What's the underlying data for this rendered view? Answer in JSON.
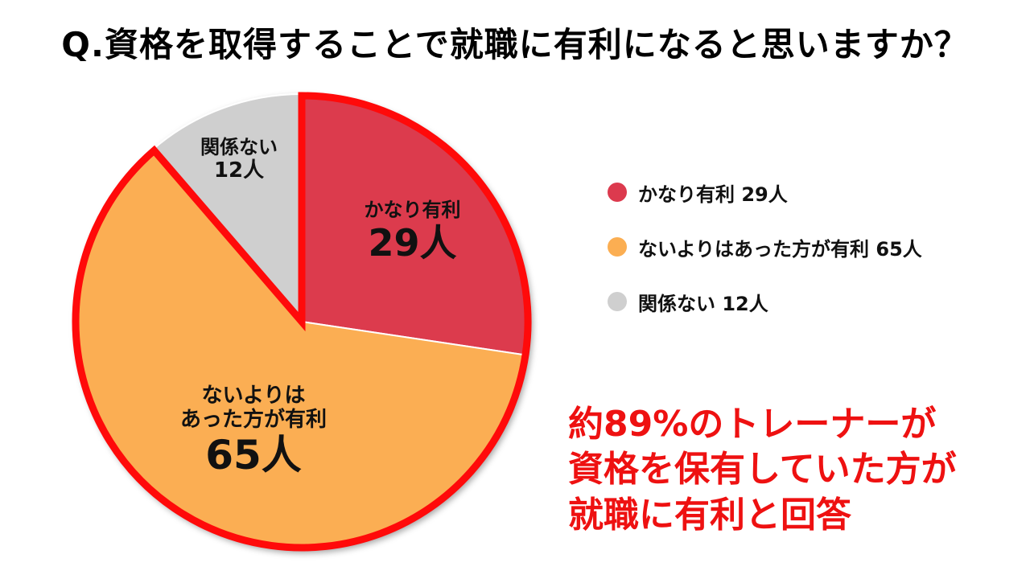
{
  "title": "Q.資格を取得することで就職に有利になると思いますか？",
  "chart_data": {
    "type": "pie",
    "title": "Q.資格を取得することで就職に有利になると思いますか？",
    "unit": "人",
    "slices": [
      {
        "label": "かなり有利",
        "value": 29,
        "value_text": "29人",
        "color": "#dc3a4e"
      },
      {
        "label": "ないよりはあった方が有利",
        "label_lines": [
          "ないよりは",
          "あった方が有利"
        ],
        "value": 65,
        "value_text": "65人",
        "color": "#fbae52"
      },
      {
        "label": "関係ない",
        "value": 12,
        "value_text": "12人",
        "color": "#cfcfcf"
      }
    ],
    "highlight_color": "#ff0a0a",
    "legend": [
      {
        "text": "かなり有利 29人",
        "color": "#dc3a4e"
      },
      {
        "text": "ないよりはあった方が有利 65人",
        "color": "#fbae52"
      },
      {
        "text": "関係ない 12人",
        "color": "#cfcfcf"
      }
    ],
    "legend_position": "right"
  },
  "callout": {
    "lines": [
      "約89%のトレーナーが",
      "資格を保有していた方が",
      "就職に有利と回答"
    ]
  }
}
